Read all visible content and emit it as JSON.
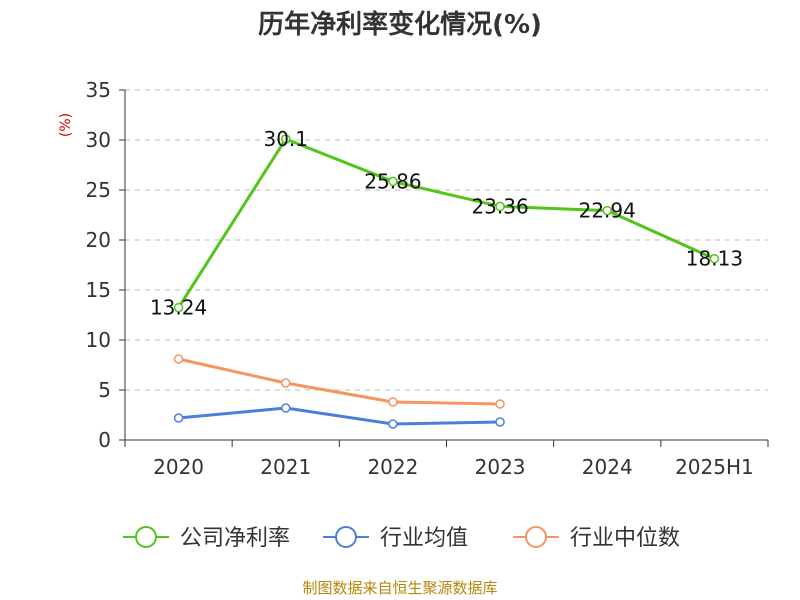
{
  "chart_data": {
    "type": "line",
    "title": "历年净利率变化情况(%)",
    "ylabel": "(%)",
    "xlabel": "",
    "categories": [
      "2020",
      "2021",
      "2022",
      "2023",
      "2024",
      "2025H1"
    ],
    "ylim": [
      0,
      35
    ],
    "yticks": [
      0,
      5,
      10,
      15,
      20,
      25,
      30,
      35
    ],
    "grid": true,
    "legend_position": "bottom",
    "series": [
      {
        "name": "公司净利率",
        "color": "#52c41a",
        "values": [
          13.24,
          30.1,
          25.86,
          23.36,
          22.94,
          18.13
        ],
        "labels": [
          "13.24",
          "30.1",
          "25.86",
          "23.36",
          "22.94",
          "18.13"
        ],
        "show_labels": true
      },
      {
        "name": "行业均值",
        "color": "#4e7fd8",
        "values": [
          2.2,
          3.2,
          1.6,
          1.8,
          null,
          null
        ],
        "show_labels": false
      },
      {
        "name": "行业中位数",
        "color": "#f79560",
        "values": [
          8.1,
          5.7,
          3.8,
          3.6,
          null,
          null
        ],
        "show_labels": false
      }
    ]
  },
  "source_text": "制图数据来自恒生聚源数据库"
}
